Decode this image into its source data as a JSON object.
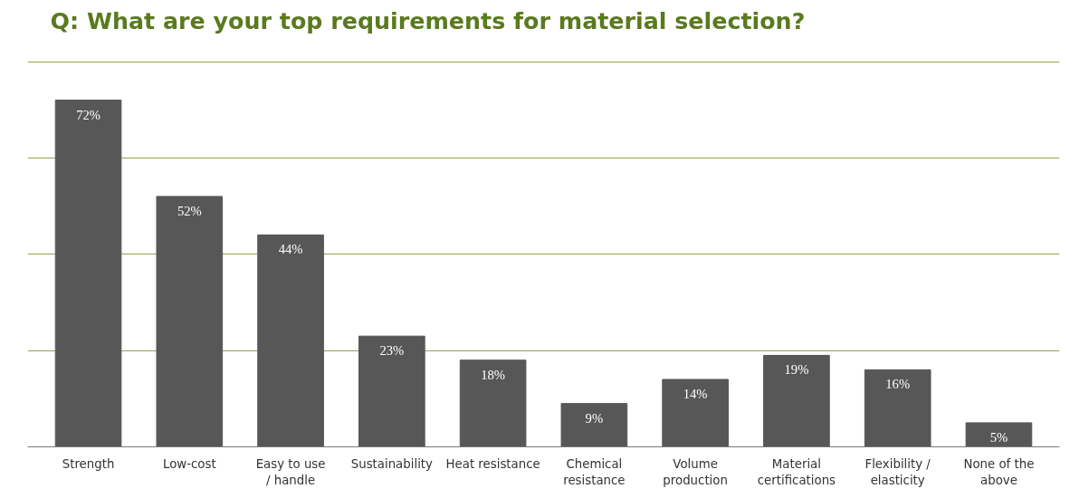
{
  "chart_data": {
    "type": "bar",
    "title": "Q: What are your top requirements for material selection?",
    "categories": [
      "Strength",
      "Low-cost",
      "Easy to use\n/ handle",
      "Sustainability",
      "Heat resistance",
      "Chemical\nresistance",
      "Volume\nproduction",
      "Material\ncertifications",
      "Flexibility /\nelasticity",
      "None of the\nabove"
    ],
    "values": [
      72,
      52,
      44,
      23,
      18,
      9,
      14,
      19,
      16,
      5
    ],
    "value_labels": [
      "72%",
      "52%",
      "44%",
      "23%",
      "18%",
      "9%",
      "14%",
      "19%",
      "16%",
      "5%"
    ],
    "color": "#575757",
    "ylim": [
      0,
      80
    ],
    "yticks": [
      {
        "value": 0,
        "label": null
      },
      {
        "value": 20,
        "label": null
      },
      {
        "value": 40,
        "label": null
      },
      {
        "value": 60,
        "label": null
      },
      {
        "value": 80,
        "label": null
      }
    ],
    "grid": "y",
    "tick_labels": "x"
  }
}
